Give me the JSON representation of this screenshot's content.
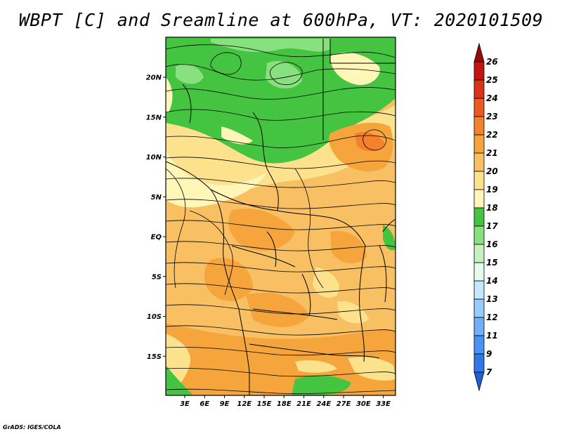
{
  "title": "WBPT [C] and Sreamline at 600hPa, VT: 2020101509",
  "credit": "GrADS: IGES/COLA",
  "map": {
    "lat_ticks": [
      "20N",
      "15N",
      "10N",
      "5N",
      "EQ",
      "5S",
      "10S",
      "15S"
    ],
    "lat_values": [
      20,
      15,
      10,
      5,
      0,
      -5,
      -10,
      -15
    ],
    "lon_ticks": [
      "3E",
      "6E",
      "9E",
      "12E",
      "15E",
      "18E",
      "21E",
      "24E",
      "27E",
      "30E",
      "33E"
    ],
    "lon_values": [
      3,
      6,
      9,
      12,
      15,
      18,
      21,
      24,
      27,
      30,
      33
    ],
    "lon_range": [
      0,
      35
    ],
    "lat_range": [
      -20,
      25
    ]
  },
  "colorbar": {
    "levels": [
      "7",
      "9",
      "11",
      "12",
      "13",
      "14",
      "15",
      "16",
      "17",
      "18",
      "19",
      "20",
      "21",
      "22",
      "23",
      "24",
      "25",
      "26"
    ],
    "colors": [
      "#1f5fd6",
      "#2f78e6",
      "#4a93f2",
      "#6fb0f8",
      "#98ccfc",
      "#c6e8ff",
      "#e6fbf0",
      "#c3f2bc",
      "#89e07f",
      "#44c440",
      "#fff6b8",
      "#fde28e",
      "#f8c062",
      "#f5a53c",
      "#f4812d",
      "#ec5a22",
      "#d8331b",
      "#c01512",
      "#9a0909"
    ]
  }
}
